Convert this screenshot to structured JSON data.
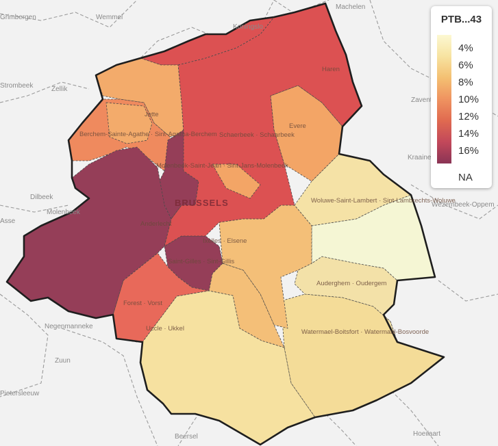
{
  "legend": {
    "title": "PTB...43",
    "ticks": [
      "4%",
      "6%",
      "8%",
      "10%",
      "12%",
      "14%",
      "16%"
    ],
    "na_label": "NA",
    "color_scale": [
      "#fcf8d2",
      "#f7e3a1",
      "#f4c072",
      "#ef9360",
      "#e06a50",
      "#c2485a",
      "#8a3455"
    ]
  },
  "city_label": "BRUSSELS",
  "municipalities": [
    {
      "id": "haren",
      "label": "Haren",
      "color": "#dc5152"
    },
    {
      "id": "schaerbeek",
      "label": "Schaerbeek · Schaarbeek",
      "color": "#dc5152"
    },
    {
      "id": "jette",
      "label": "Jette",
      "color": "#f3ab6b"
    },
    {
      "id": "berchem",
      "label": "Berchem-Sainte-Agathe · Sint-Agatha-Berchem",
      "color": "#ef8a5e"
    },
    {
      "id": "molenbeek",
      "label": "Molenbeek-Saint-Jean · Sint-Jans-Molenbeek",
      "color": "#953e58"
    },
    {
      "id": "anderlecht",
      "label": "Anderlecht",
      "color": "#953e58"
    },
    {
      "id": "saintgilles",
      "label": "Saint-Gilles · Sint-Gillis",
      "color": "#953e58"
    },
    {
      "id": "evere",
      "label": "Evere",
      "color": "#f3a566"
    },
    {
      "id": "woluwelambert",
      "label": "Woluwe-Saint-Lambert · Sint-Lambrechts-Woluwe",
      "color": "#f5e2a6"
    },
    {
      "id": "woluwepierre",
      "label": "",
      "color": "#f5f6d4"
    },
    {
      "id": "ixelles",
      "label": "Ixelles · Elsene",
      "color": "#f4bf78"
    },
    {
      "id": "auderghem",
      "label": "Auderghem · Oudergem",
      "color": "#f3e1a8"
    },
    {
      "id": "watermael",
      "label": "Watermael-Boitsfort · Watermaal-Bosvoorde",
      "color": "#f4dc98"
    },
    {
      "id": "forest",
      "label": "Forest · Vorst",
      "color": "#e8695a"
    },
    {
      "id": "uccle",
      "label": "Uccle · Ukkel",
      "color": "#f6e1a0"
    }
  ],
  "outside_labels": [
    "Machelen",
    "Wemmel",
    "Koningslo",
    "Zellik",
    "Dilbeek",
    "Wezembeek-Oppem",
    "Zaventem",
    "Kraainem",
    "Negenmanneke",
    "Zuun",
    "Pietersleeuw",
    "Beersel",
    "Hoeilaart",
    "Grimbergen",
    "Strombeek",
    "Asse",
    "Molenbeek",
    "Oppem"
  ]
}
